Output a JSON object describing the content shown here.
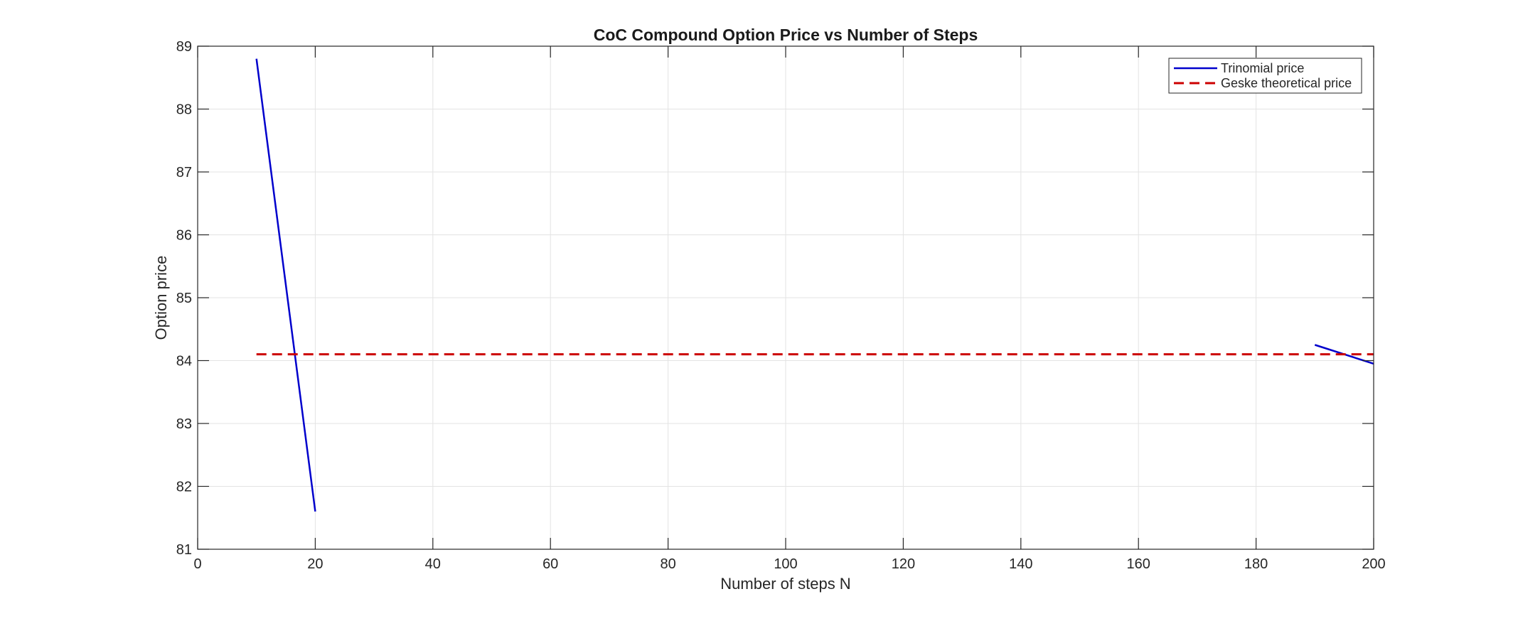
{
  "chart_data": {
    "type": "line",
    "title": "CoC Compound Option Price vs Number of Steps",
    "xlabel": "Number of steps N",
    "ylabel": "Option price",
    "xlim": [
      0,
      200
    ],
    "ylim": [
      81,
      89
    ],
    "xticks": [
      0,
      20,
      40,
      60,
      80,
      100,
      120,
      140,
      160,
      180,
      200
    ],
    "yticks": [
      81,
      82,
      83,
      84,
      85,
      86,
      87,
      88,
      89
    ],
    "grid": true,
    "legend_position": "top-right",
    "series": [
      {
        "name": "Trinomial price",
        "color": "#0000cc",
        "style": "solid",
        "segments": [
          {
            "x": [
              10,
              20
            ],
            "y": [
              88.8,
              81.6
            ]
          },
          {
            "x": [
              190,
              200
            ],
            "y": [
              84.25,
              83.95
            ]
          }
        ]
      },
      {
        "name": "Geske theoretical price",
        "color": "#cc0000",
        "style": "dashed",
        "x": [
          10,
          200
        ],
        "y": [
          84.1,
          84.1
        ]
      }
    ]
  }
}
